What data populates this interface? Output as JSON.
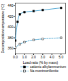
{
  "chart_data": {
    "type": "line",
    "x_label": "Load ratio (% by mass)",
    "y_label": "Decomposition temperature (°C)",
    "xlim": [
      0,
      5.5
    ],
    "xticks": [
      0,
      1,
      2,
      3,
      4,
      5
    ],
    "ylim": [
      350,
      445
    ],
    "yticks": [
      360,
      380,
      400,
      420,
      440
    ],
    "legend": "bottom",
    "series": [
      {
        "name": "cationic alkylammonium",
        "color": "#3399cc",
        "marker": "filled-square",
        "line_style": "solid",
        "x": [
          0,
          0.25,
          0.5,
          1,
          2,
          3,
          5
        ],
        "values": [
          375,
          410,
          424,
          428,
          430,
          432,
          436
        ]
      },
      {
        "name": "Na-montmorillonite",
        "color": "#3399cc",
        "marker": "open-square",
        "line_style": "dashed",
        "x": [
          0,
          0.5,
          1,
          2,
          3,
          5
        ],
        "values": [
          362,
          368,
          372,
          376,
          378,
          380
        ]
      }
    ]
  }
}
